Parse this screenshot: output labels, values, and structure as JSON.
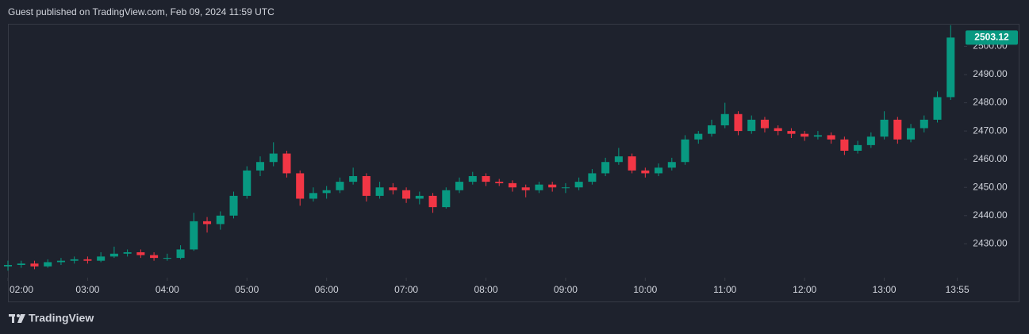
{
  "chart_data": {
    "type": "candlestick",
    "title": "Guest published on TradingView.com, Feb 09, 2024 11:59 UTC",
    "footer_brand": "TradingView",
    "up_color": "#089981",
    "down_color": "#f23645",
    "grid": false,
    "x": [
      120,
      130,
      140,
      150,
      160,
      170,
      180,
      190,
      200,
      210,
      220,
      230,
      240,
      250,
      260,
      270,
      280,
      290,
      300,
      310,
      320,
      330,
      340,
      350,
      360,
      370,
      380,
      390,
      400,
      410,
      420,
      430,
      440,
      450,
      460,
      470,
      480,
      490,
      500,
      510,
      520,
      530,
      540,
      550,
      560,
      570,
      580,
      590,
      600,
      610,
      620,
      630,
      640,
      650,
      660,
      670,
      680,
      690,
      700,
      710,
      720,
      730,
      740,
      750,
      760,
      770,
      780,
      790,
      800,
      810,
      820,
      830
    ],
    "open": [
      2422,
      2422.5,
      2423,
      2422,
      2423.5,
      2424,
      2424.5,
      2424,
      2425.5,
      2426.5,
      2427,
      2426,
      2425,
      2425,
      2428,
      2438,
      2437,
      2440,
      2447,
      2456,
      2459,
      2462,
      2455,
      2446,
      2448,
      2449,
      2452,
      2454,
      2447,
      2450,
      2449,
      2446,
      2447,
      2443,
      2449,
      2452,
      2454,
      2452,
      2451.5,
      2450,
      2449,
      2451,
      2450,
      2450,
      2452,
      2455,
      2459,
      2461,
      2456,
      2455,
      2457,
      2459,
      2467,
      2469,
      2472,
      2476,
      2470,
      2474,
      2471,
      2470,
      2469,
      2468,
      2468.5,
      2467,
      2463,
      2465,
      2468,
      2474,
      2467,
      2471,
      2474,
      2482
    ],
    "high": [
      2424,
      2424,
      2424,
      2424.5,
      2425,
      2425.5,
      2425.5,
      2427,
      2429,
      2428,
      2428,
      2427,
      2426.5,
      2429.5,
      2441,
      2439.5,
      2441.5,
      2448.5,
      2457.5,
      2461,
      2466,
      2463,
      2456,
      2450,
      2450.5,
      2453.5,
      2457,
      2455,
      2452,
      2451.5,
      2450,
      2448.5,
      2448,
      2450,
      2453.5,
      2455.5,
      2455,
      2453,
      2452.5,
      2451,
      2452,
      2452,
      2451.5,
      2453.5,
      2456.5,
      2460.5,
      2464,
      2462,
      2457,
      2458.5,
      2460.5,
      2468.5,
      2470,
      2474,
      2480,
      2477,
      2475.5,
      2475,
      2472,
      2471,
      2470,
      2470,
      2469.5,
      2468,
      2466.5,
      2469.5,
      2477,
      2475,
      2472.5,
      2475.5,
      2484,
      2507.5
    ],
    "low": [
      2420.5,
      2421.5,
      2421,
      2421.5,
      2422.5,
      2423,
      2423,
      2423.5,
      2425,
      2425.5,
      2425,
      2424,
      2424,
      2424.5,
      2427.5,
      2434,
      2435,
      2439,
      2446,
      2454,
      2457.5,
      2453.5,
      2443.5,
      2445,
      2446,
      2448,
      2451,
      2445,
      2446,
      2447.5,
      2444.5,
      2444,
      2441,
      2442.5,
      2448,
      2451,
      2450.5,
      2450.5,
      2448.5,
      2446.5,
      2448,
      2448.5,
      2448,
      2449,
      2451,
      2454,
      2458,
      2455,
      2453.5,
      2454,
      2456,
      2458,
      2465.5,
      2468,
      2471,
      2468.5,
      2469,
      2469.5,
      2468.5,
      2467.5,
      2466.5,
      2467,
      2465.5,
      2461.5,
      2462,
      2464,
      2467,
      2465.5,
      2466,
      2469.5,
      2473,
      2481
    ],
    "close": [
      2422.5,
      2423,
      2422,
      2423.5,
      2424,
      2424.5,
      2424,
      2425.5,
      2426.5,
      2427,
      2426,
      2425,
      2425,
      2428,
      2438,
      2437,
      2440,
      2447,
      2456,
      2459,
      2462,
      2455,
      2446,
      2448,
      2449,
      2452,
      2454,
      2447,
      2450,
      2449,
      2446,
      2447,
      2443,
      2449,
      2452,
      2454,
      2452,
      2451.5,
      2450,
      2449,
      2451,
      2450,
      2450,
      2452,
      2455,
      2459,
      2461,
      2456,
      2455,
      2457,
      2459,
      2467,
      2469,
      2472,
      2476,
      2470,
      2474,
      2471,
      2470,
      2469,
      2468,
      2468.5,
      2467,
      2463,
      2465,
      2468,
      2474,
      2467,
      2471,
      2474,
      2482,
      2503.12
    ],
    "xlim": [
      120,
      840
    ],
    "ylim": [
      2418,
      2508
    ],
    "xticks": [
      {
        "value": 120,
        "label": "02:00"
      },
      {
        "value": 180,
        "label": "03:00"
      },
      {
        "value": 240,
        "label": "04:00"
      },
      {
        "value": 300,
        "label": "05:00"
      },
      {
        "value": 360,
        "label": "06:00"
      },
      {
        "value": 420,
        "label": "07:00"
      },
      {
        "value": 480,
        "label": "08:00"
      },
      {
        "value": 540,
        "label": "09:00"
      },
      {
        "value": 600,
        "label": "10:00"
      },
      {
        "value": 660,
        "label": "11:00"
      },
      {
        "value": 720,
        "label": "12:00"
      },
      {
        "value": 780,
        "label": "13:00"
      },
      {
        "value": 835,
        "label": "13:55"
      }
    ],
    "yticks": [
      {
        "value": 2430,
        "label": "2430.00"
      },
      {
        "value": 2440,
        "label": "2440.00"
      },
      {
        "value": 2450,
        "label": "2450.00"
      },
      {
        "value": 2460,
        "label": "2460.00"
      },
      {
        "value": 2470,
        "label": "2470.00"
      },
      {
        "value": 2480,
        "label": "2480.00"
      },
      {
        "value": 2490,
        "label": "2490.00"
      },
      {
        "value": 2500,
        "label": "2500.00"
      }
    ]
  }
}
